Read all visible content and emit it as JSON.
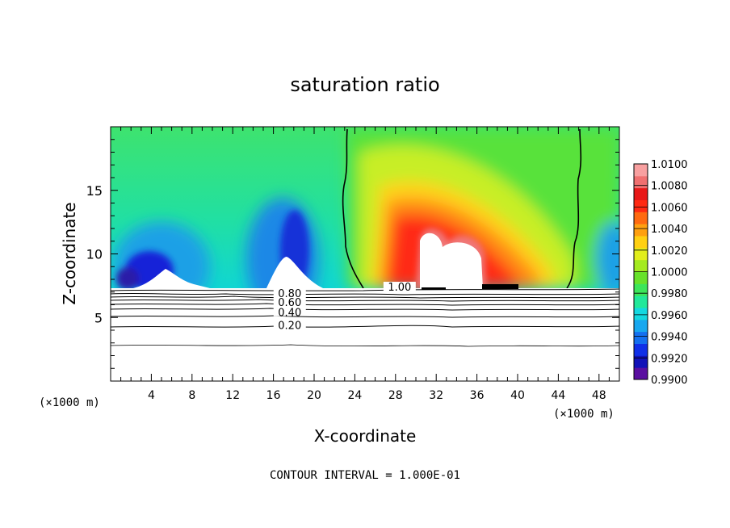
{
  "chart_data": {
    "type": "heatmap",
    "title": "saturation ratio",
    "xlabel": "X-coordinate",
    "ylabel": "Z-coordinate",
    "x_unit": "(×1000 m)",
    "xlim": [
      0,
      50
    ],
    "ylim": [
      0,
      20
    ],
    "x_ticks": [
      4,
      8,
      12,
      16,
      20,
      24,
      28,
      32,
      36,
      40,
      44,
      48
    ],
    "y_ticks": [
      5,
      10,
      15
    ],
    "colorbar": {
      "labels": [
        "1.0100",
        "1.0080",
        "1.0060",
        "1.0040",
        "1.0020",
        "1.0000",
        "0.9980",
        "0.9960",
        "0.9940",
        "0.9920",
        "0.9900"
      ],
      "min": 0.99,
      "max": 1.01
    },
    "contour_labels": [
      {
        "text": "0.80",
        "x": 17.6,
        "y": 6.8
      },
      {
        "text": "0.60",
        "x": 17.6,
        "y": 6.1
      },
      {
        "text": "0.40",
        "x": 17.6,
        "y": 5.3
      },
      {
        "text": "0.20",
        "x": 17.6,
        "y": 4.3
      },
      {
        "text": "1.00",
        "x": 28.4,
        "y": 7.3
      }
    ],
    "footer": "CONTOUR INTERVAL = 1.000E-01"
  }
}
